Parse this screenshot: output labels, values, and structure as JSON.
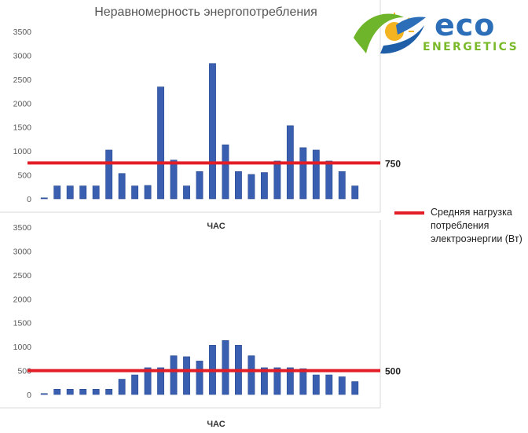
{
  "title": "Неравномерность энергопотребления",
  "logo": {
    "word1": "eco",
    "word2": "ENERGETICS"
  },
  "legend": {
    "label": "Средняя нагрузка потребления электроэнергии (Вт)",
    "color": "#e21d26"
  },
  "chart_data": [
    {
      "type": "bar",
      "title": "Неравномерность энергопотребления",
      "xlabel": "ЧАС",
      "ylabel": "",
      "ylim": [
        0,
        3500
      ],
      "yticks": [
        0,
        500,
        1000,
        1500,
        2000,
        2500,
        3000,
        3500
      ],
      "bar_color": "#3a5fb0",
      "values": [
        20,
        270,
        270,
        270,
        270,
        1020,
        530,
        270,
        280,
        2340,
        810,
        270,
        570,
        2830,
        1130,
        570,
        510,
        550,
        790,
        1530,
        1070,
        1020,
        790,
        570,
        270
      ],
      "average_line": {
        "value": 750,
        "label": "750",
        "color": "#e21d26"
      }
    },
    {
      "type": "bar",
      "title": "",
      "xlabel": "ЧАС",
      "ylabel": "",
      "ylim": [
        0,
        3500
      ],
      "yticks": [
        0,
        500,
        1000,
        1500,
        2000,
        2500,
        3000,
        3500
      ],
      "bar_color": "#3a5fb0",
      "values": [
        20,
        110,
        110,
        110,
        110,
        110,
        320,
        410,
        560,
        560,
        810,
        790,
        700,
        1030,
        1130,
        1030,
        810,
        560,
        560,
        560,
        540,
        410,
        410,
        370,
        270
      ],
      "average_line": {
        "value": 500,
        "label": "500",
        "color": "#e21d26"
      }
    }
  ]
}
